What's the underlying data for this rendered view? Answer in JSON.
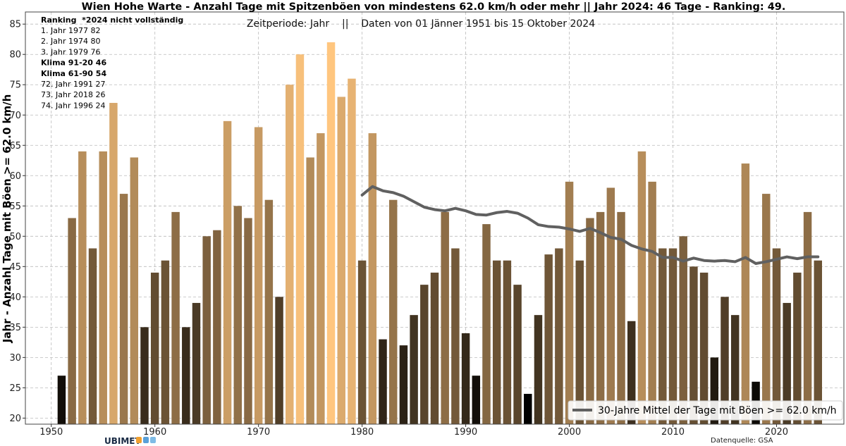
{
  "title": "Wien Hohe Warte - Anzahl Tage mit Spitzenböen von mindestens 62.0 km/h oder mehr || Jahr 2024: 46 Tage - Ranking: 49.",
  "subtitle": "Zeitperiode: Jahr    ||    Daten von 01 Jänner 1951 bis 15 Oktober 2024",
  "ranking": {
    "header": "Ranking  *2024 nicht vollständig",
    "lines": [
      {
        "text": "1.  Jahr 1977  82",
        "bold": false
      },
      {
        "text": "2.  Jahr 1974  80",
        "bold": false
      },
      {
        "text": "3.  Jahr 1979  76",
        "bold": false
      },
      {
        "text": "Klima 91-20    46",
        "bold": true
      },
      {
        "text": "Klima 61-90    54",
        "bold": true
      },
      {
        "text": "72.  Jahr 1991  27",
        "bold": false
      },
      {
        "text": "73.  Jahr 2018  26",
        "bold": false
      },
      {
        "text": "74.  Jahr 1996  24",
        "bold": false
      }
    ]
  },
  "legend": {
    "label": "30-Jahre Mittel der Tage mit Böen >= 62.0 km/h"
  },
  "source": "Datenquelle: GSA",
  "logo": "UBIMET",
  "colors": {
    "bar_low": "#000000",
    "bar_high": "#ffc67f",
    "mean_line": "#606060",
    "grid": "#bbbbbb"
  },
  "chart_data": {
    "type": "bar",
    "xlabel": "",
    "ylabel": "Jahr - Anzahl Tage mit Böen >= 62.0 km/h",
    "xlim": [
      1947.5,
      2026.5
    ],
    "ylim": [
      19,
      87
    ],
    "xticks": [
      1950,
      1960,
      1970,
      1980,
      1990,
      2000,
      2010,
      2020
    ],
    "yticks": [
      20,
      25,
      30,
      35,
      40,
      45,
      50,
      55,
      60,
      65,
      70,
      75,
      80,
      85
    ],
    "grid": true,
    "legend_position": "bottom-right",
    "years": [
      1951,
      1952,
      1953,
      1954,
      1955,
      1956,
      1957,
      1958,
      1959,
      1960,
      1961,
      1962,
      1963,
      1964,
      1965,
      1966,
      1967,
      1968,
      1969,
      1970,
      1971,
      1972,
      1973,
      1974,
      1975,
      1976,
      1977,
      1978,
      1979,
      1980,
      1981,
      1982,
      1983,
      1984,
      1985,
      1986,
      1987,
      1988,
      1989,
      1990,
      1991,
      1992,
      1993,
      1994,
      1995,
      1996,
      1997,
      1998,
      1999,
      2000,
      2001,
      2002,
      2003,
      2004,
      2005,
      2006,
      2007,
      2008,
      2009,
      2010,
      2011,
      2012,
      2013,
      2014,
      2015,
      2016,
      2017,
      2018,
      2019,
      2020,
      2021,
      2022,
      2023,
      2024
    ],
    "values": [
      27,
      53,
      64,
      48,
      64,
      72,
      57,
      63,
      35,
      44,
      46,
      54,
      35,
      39,
      50,
      51,
      69,
      55,
      53,
      68,
      56,
      40,
      75,
      80,
      63,
      67,
      82,
      73,
      76,
      46,
      67,
      33,
      56,
      32,
      37,
      42,
      44,
      54,
      48,
      34,
      27,
      52,
      46,
      46,
      42,
      24,
      37,
      47,
      48,
      59,
      46,
      53,
      54,
      58,
      54,
      36,
      64,
      59,
      48,
      48,
      50,
      45,
      44,
      30,
      40,
      37,
      62,
      26,
      57,
      48,
      39,
      44,
      54,
      46
    ],
    "series": [
      {
        "name": "30-Jahre Mittel der Tage mit Böen >= 62.0 km/h",
        "type": "line",
        "x": [
          1980,
          1981,
          1982,
          1983,
          1984,
          1985,
          1986,
          1987,
          1988,
          1989,
          1990,
          1991,
          1992,
          1993,
          1994,
          1995,
          1996,
          1997,
          1998,
          1999,
          2000,
          2001,
          2002,
          2003,
          2004,
          2005,
          2006,
          2007,
          2008,
          2009,
          2010,
          2011,
          2012,
          2013,
          2014,
          2015,
          2016,
          2017,
          2018,
          2019,
          2020,
          2021,
          2022,
          2023,
          2024
        ],
        "values": [
          56.8,
          58.2,
          57.5,
          57.2,
          56.6,
          55.7,
          54.8,
          54.4,
          54.2,
          54.6,
          54.2,
          53.6,
          53.5,
          53.9,
          54.1,
          53.8,
          53.0,
          51.9,
          51.6,
          51.5,
          51.2,
          50.8,
          51.3,
          50.6,
          49.8,
          49.5,
          48.5,
          47.9,
          47.5,
          46.5,
          46.5,
          45.9,
          46.4,
          46.0,
          45.9,
          46.0,
          45.8,
          46.5,
          45.5,
          45.8,
          46.2,
          46.6,
          46.3,
          46.6,
          46.6
        ]
      }
    ]
  }
}
